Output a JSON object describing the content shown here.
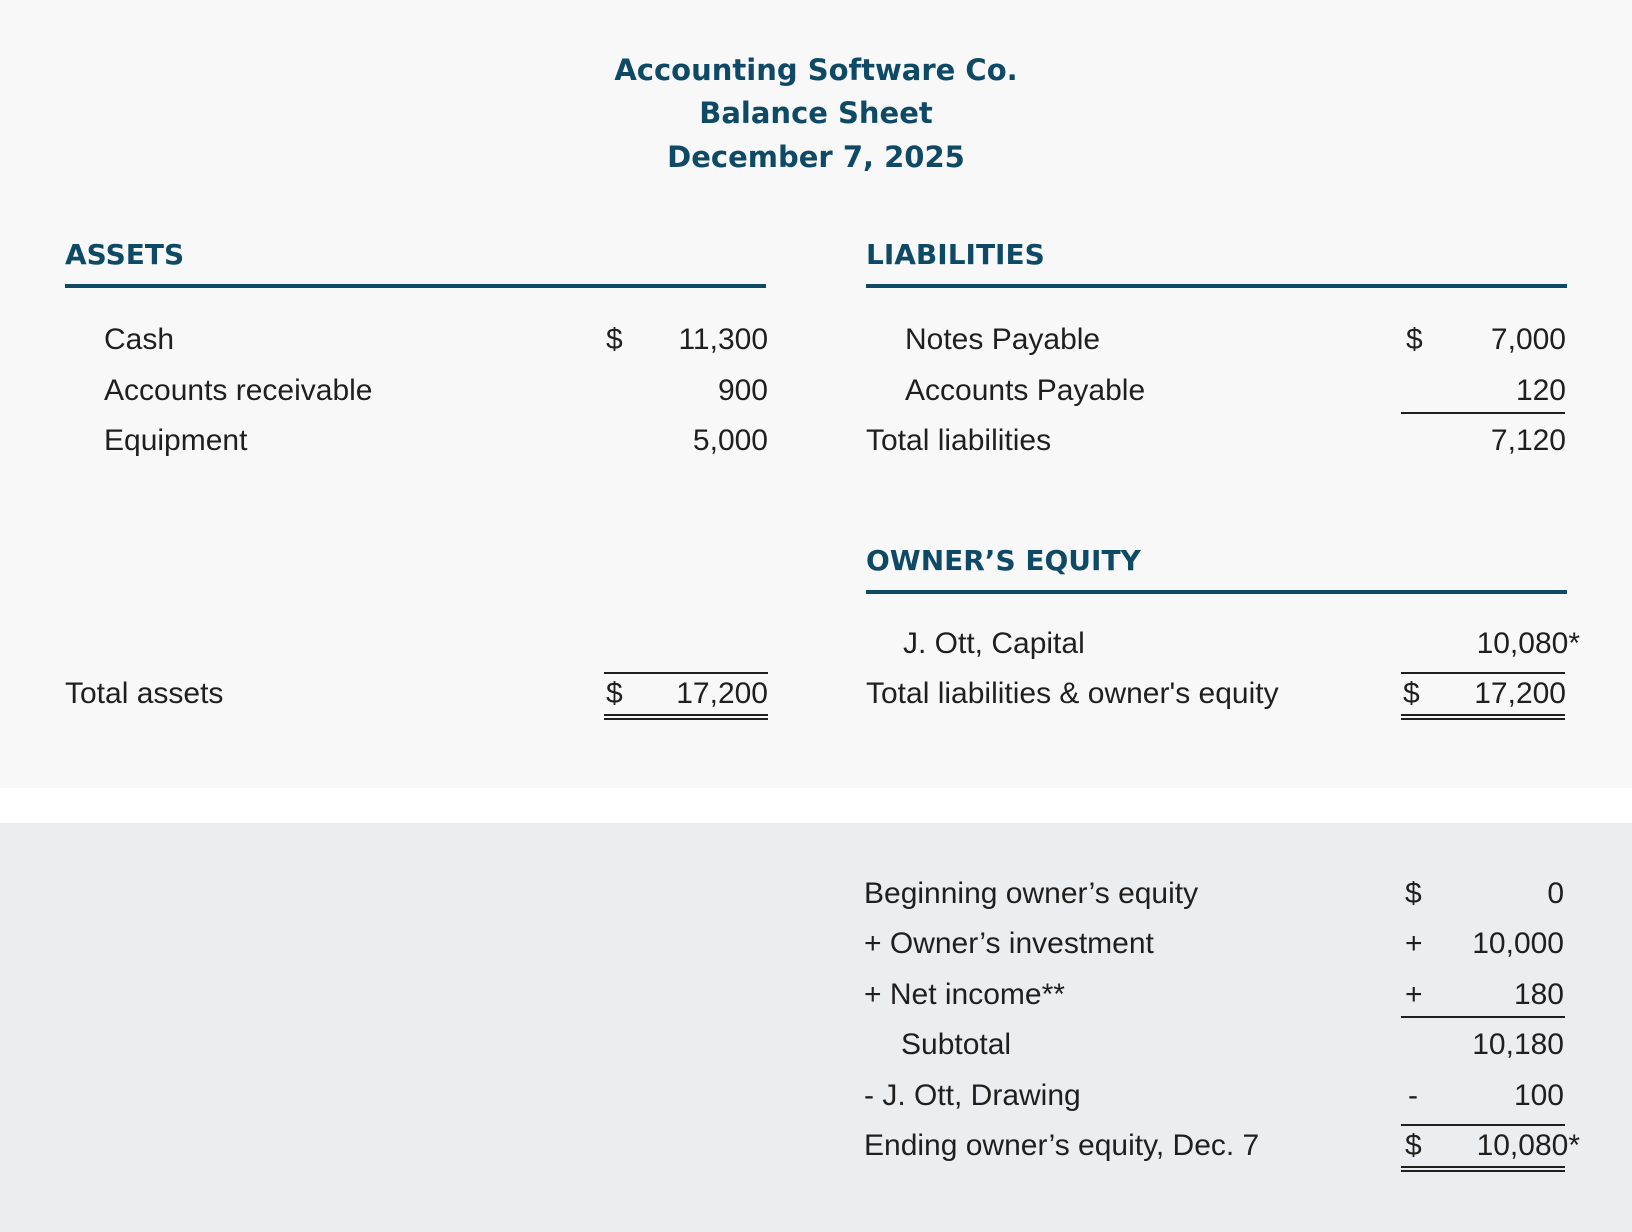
{
  "header": {
    "company": "Accounting Software Co.",
    "title": "Balance Sheet",
    "date": "December 7, 2025"
  },
  "assets": {
    "heading": "ASSETS",
    "items": [
      {
        "label": "Cash",
        "currency": "$",
        "value": "11,300"
      },
      {
        "label": "Accounts receivable",
        "value": "900"
      },
      {
        "label": "Equipment",
        "value": "5,000"
      }
    ],
    "total": {
      "label": "Total assets",
      "currency": "$",
      "value": "17,200"
    }
  },
  "liabilities": {
    "heading": "LIABILITIES",
    "items": [
      {
        "label": "Notes Payable",
        "currency": "$",
        "value": "7,000"
      },
      {
        "label": "Accounts Payable",
        "value": "120"
      }
    ],
    "total": {
      "label": "Total liabilities",
      "value": "7,120"
    }
  },
  "equity": {
    "heading": "OWNER’S EQUITY",
    "items": [
      {
        "label": "J. Ott, Capital",
        "value": "10,080*"
      }
    ],
    "total": {
      "label": "Total liabilities & owner's equity",
      "currency": "$",
      "value": "17,200"
    }
  },
  "equity_statement": {
    "rows": [
      {
        "label": "Beginning owner’s equity",
        "sign": "$",
        "value": "0"
      },
      {
        "label": "+ Owner’s investment",
        "sign": "+",
        "value": "10,000"
      },
      {
        "label": "+ Net income**",
        "sign": "+",
        "value": "180"
      },
      {
        "label": "Subtotal",
        "sign": "",
        "value": "10,180"
      },
      {
        "label": "- J. Ott, Drawing",
        "sign": "-",
        "value": "100"
      },
      {
        "label": "Ending owner’s equity, Dec. 7",
        "sign": "$",
        "value": "10,080*"
      }
    ]
  }
}
